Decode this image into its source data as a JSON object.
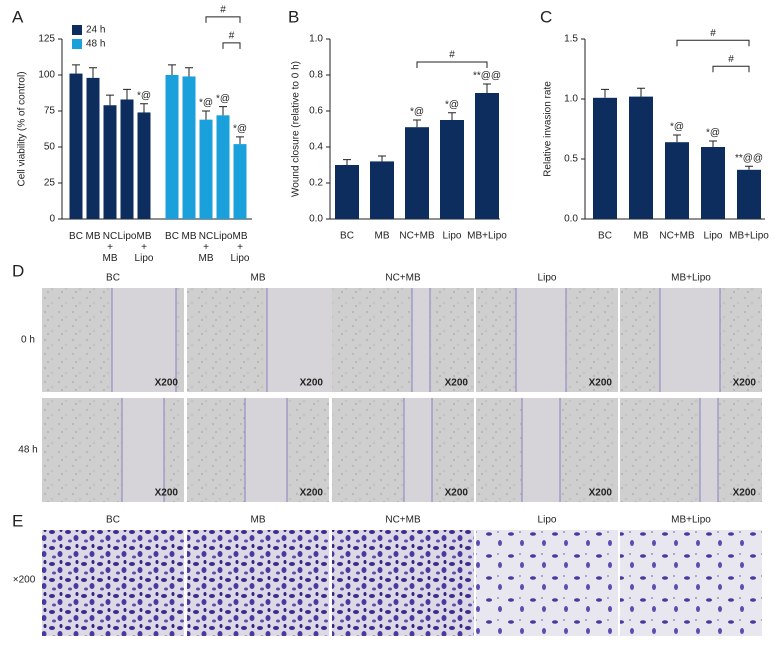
{
  "chart_data": [
    {
      "type": "bar",
      "panel": "A",
      "y_label": "Cell viability (% of control)",
      "categories": [
        "BC",
        "MB",
        "NC + MB",
        "Lipo",
        "MB + Lipo"
      ],
      "series": [
        {
          "name": "24 h",
          "color": "#0d2d5e",
          "values": [
            101,
            98,
            79,
            83,
            74
          ],
          "errors": [
            6,
            7,
            7,
            7,
            6
          ],
          "annotations": [
            null,
            null,
            null,
            null,
            "*@"
          ]
        },
        {
          "name": "48 h",
          "color": "#1aa1dc",
          "values": [
            100,
            99,
            69,
            72,
            52
          ],
          "errors": [
            7,
            6,
            6,
            6,
            5
          ],
          "annotations": [
            null,
            null,
            "*@",
            "*@",
            "*@"
          ]
        }
      ],
      "brackets": [
        {
          "between": [
            "NC + MB",
            "MB + Lipo"
          ],
          "series": "48 h",
          "label": "#"
        },
        {
          "between": [
            "Lipo",
            "MB + Lipo"
          ],
          "series": "48 h",
          "label": "#"
        }
      ],
      "ylim": [
        0,
        125
      ],
      "yticks": [
        0,
        25,
        50,
        75,
        100,
        125
      ],
      "legend": "top-left"
    },
    {
      "type": "bar",
      "panel": "B",
      "y_label": "Wound closure (relative to 0 h)",
      "categories": [
        "BC",
        "MB",
        "NC+MB",
        "Lipo",
        "MB+Lipo"
      ],
      "series": [
        {
          "color": "#0d2d5e",
          "values": [
            0.3,
            0.32,
            0.51,
            0.55,
            0.7
          ],
          "errors": [
            0.03,
            0.03,
            0.04,
            0.04,
            0.05
          ],
          "annotations": [
            null,
            null,
            "*@",
            "*@",
            "**@@"
          ]
        }
      ],
      "brackets": [
        {
          "between": [
            "NC+MB",
            "MB+Lipo"
          ],
          "label": "#"
        }
      ],
      "ylim": [
        0,
        1.0
      ],
      "yticks": [
        {
          "value": 0,
          "label": "0.0"
        },
        0.2,
        0.4,
        0.6,
        0.8,
        {
          "value": 1,
          "label": "1.0"
        }
      ]
    },
    {
      "type": "bar",
      "panel": "C",
      "y_label": "Relative invasion rate",
      "categories": [
        "BC",
        "MB",
        "NC+MB",
        "Lipo",
        "MB+Lipo"
      ],
      "series": [
        {
          "color": "#0d2d5e",
          "values": [
            1.01,
            1.02,
            0.64,
            0.6,
            0.41
          ],
          "errors": [
            0.07,
            0.07,
            0.06,
            0.05,
            0.03
          ],
          "annotations": [
            null,
            null,
            "*@",
            "*@",
            "**@@"
          ]
        }
      ],
      "brackets": [
        {
          "between": [
            "NC+MB",
            "MB+Lipo"
          ],
          "label": "#"
        },
        {
          "between": [
            "Lipo",
            "MB+Lipo"
          ],
          "label": "#"
        }
      ],
      "ylim": [
        0,
        1.5
      ],
      "yticks": [
        {
          "value": 0,
          "label": "0.0"
        },
        0.5,
        {
          "value": 1,
          "label": "1.0"
        },
        1.5
      ]
    }
  ],
  "panels": {
    "D": {
      "label": "D",
      "columns": [
        "BC",
        "MB",
        "NC+MB",
        "Lipo",
        "MB+Lipo"
      ],
      "rows": [
        "0 h",
        "48 h"
      ],
      "magnification": "X200"
    },
    "E": {
      "label": "E",
      "columns": [
        "BC",
        "MB",
        "NC+MB",
        "Lipo",
        "MB+Lipo"
      ],
      "row": "×200"
    }
  }
}
